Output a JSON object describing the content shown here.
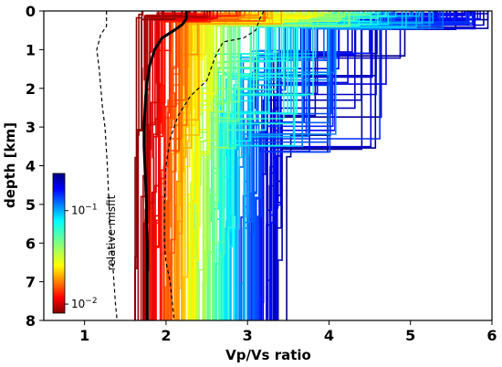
{
  "chart_data": {
    "type": "line",
    "xlabel": "Vp/Vs ratio",
    "ylabel": "depth [km]",
    "xlim": [
      0.5,
      6
    ],
    "ylim": [
      8,
      0
    ],
    "y_inverted": true,
    "x_ticks": [
      "1",
      "2",
      "3",
      "4",
      "5",
      "6"
    ],
    "y_ticks": [
      "0",
      "1",
      "2",
      "3",
      "4",
      "5",
      "6",
      "7",
      "8"
    ],
    "grid": false,
    "colorbar": {
      "label": "relative misfit",
      "scale": "log",
      "range": [
        0.008,
        0.25
      ],
      "ticks": [
        {
          "value": 0.1,
          "label": "10^{-1}"
        },
        {
          "value": 0.01,
          "label": "10^{-2}"
        }
      ],
      "colormap": "jet_r",
      "placement": "lower-left inset"
    },
    "series": [
      {
        "style": "solid-black-thick",
        "x": [
          2.25,
          2.25,
          2.2,
          2.1,
          1.95,
          1.86,
          1.8,
          1.77,
          1.75,
          1.74,
          1.73,
          1.73,
          1.74,
          1.75,
          1.76,
          1.76,
          1.77,
          1.77,
          1.77
        ],
        "y": [
          0,
          0.2,
          0.35,
          0.5,
          0.7,
          1.0,
          1.4,
          1.8,
          2.2,
          2.6,
          3.0,
          3.5,
          4.0,
          4.5,
          5.0,
          5.5,
          6.0,
          7.0,
          8.0
        ]
      },
      {
        "style": "dashed-black-left",
        "x": [
          1.27,
          1.27,
          1.2,
          1.15,
          1.18,
          1.2,
          1.22,
          1.25,
          1.28,
          1.3,
          1.33,
          1.36,
          1.38,
          1.4
        ],
        "y": [
          0,
          0.4,
          0.6,
          1.0,
          1.5,
          2.0,
          2.5,
          3.0,
          4.0,
          5.0,
          6.0,
          7.0,
          7.6,
          8.0
        ]
      },
      {
        "style": "dashed-black-right",
        "x": [
          3.2,
          3.15,
          3.1,
          2.95,
          2.7,
          2.6,
          2.5,
          2.3,
          2.15,
          2.05,
          2.0,
          1.98,
          1.98,
          2.0,
          2.05,
          2.08,
          2.1
        ],
        "y": [
          0,
          0.2,
          0.5,
          0.7,
          0.8,
          1.2,
          1.8,
          2.2,
          2.7,
          3.3,
          4.0,
          5.0,
          6.0,
          6.5,
          7.0,
          7.6,
          8.0
        ]
      }
    ],
    "ensemble_models": {
      "count": 180,
      "x_range": [
        1.6,
        6.0
      ],
      "surface_layer_max_depth": 0.5,
      "description_of_fill": "hundreds of piecewise-constant Vp/Vs profiles colored by relative misfit"
    }
  }
}
